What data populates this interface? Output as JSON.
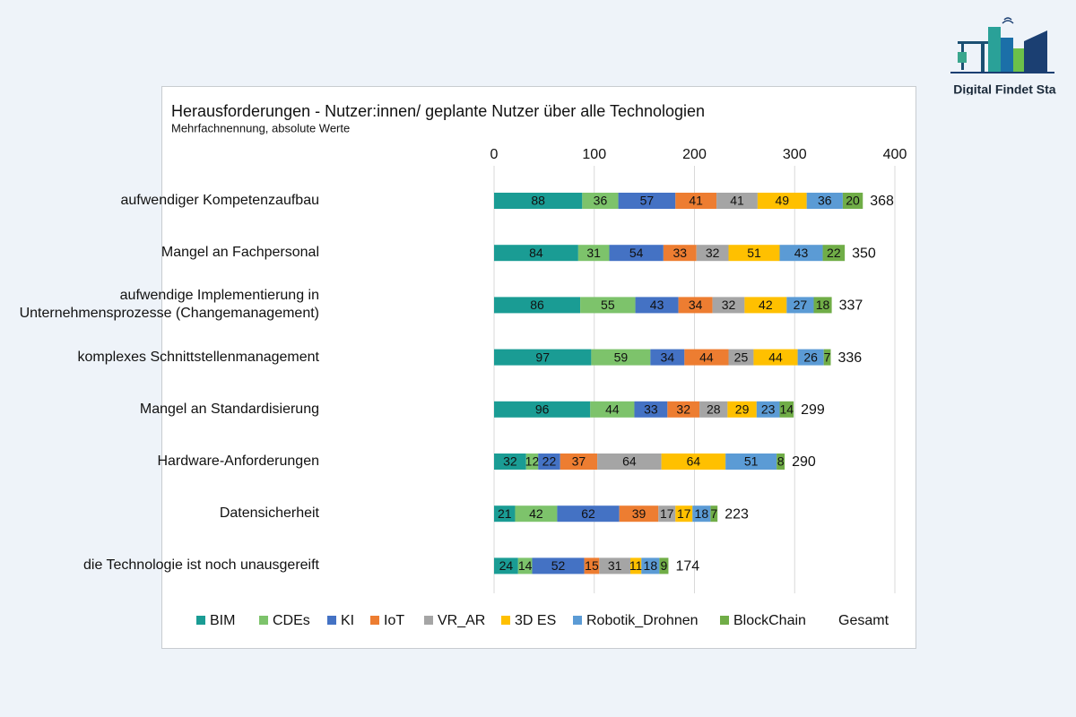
{
  "logo": {
    "text": "Digital Findet Stadt"
  },
  "chart_data": {
    "type": "bar",
    "orientation": "horizontal",
    "stacked": true,
    "title": "Herausforderungen - Nutzer:innen/ geplante Nutzer über alle Technologien",
    "subtitle": "Mehrfachnennung, absolute Werte",
    "categories": [
      "aufwendiger Kompetenzaufbau",
      "Mangel an Fachpersonal",
      "aufwendige Implementierung in\nUnternehmensprozesse (Changemanagement)",
      "komplexes Schnittstellenmanagement",
      "Mangel an Standardisierung",
      "Hardware-Anforderungen",
      "Datensicherheit",
      "die Technologie ist noch unausgereift"
    ],
    "series": [
      {
        "name": "BIM",
        "color": "#1a9c94",
        "values": [
          88,
          84,
          86,
          97,
          96,
          32,
          21,
          24
        ]
      },
      {
        "name": "CDEs",
        "color": "#7dc36b",
        "values": [
          36,
          31,
          55,
          59,
          44,
          12,
          42,
          14
        ]
      },
      {
        "name": "KI",
        "color": "#4472c4",
        "values": [
          57,
          54,
          43,
          34,
          33,
          22,
          62,
          52
        ]
      },
      {
        "name": "IoT",
        "color": "#ed7d31",
        "values": [
          41,
          33,
          34,
          44,
          32,
          37,
          39,
          15
        ]
      },
      {
        "name": "VR_AR",
        "color": "#a5a5a5",
        "values": [
          41,
          32,
          32,
          25,
          28,
          64,
          17,
          31
        ]
      },
      {
        "name": "3D ES",
        "color": "#ffc000",
        "values": [
          49,
          51,
          42,
          44,
          29,
          64,
          17,
          11
        ]
      },
      {
        "name": "Robotik_Drohnen",
        "color": "#5b9bd5",
        "values": [
          36,
          43,
          27,
          26,
          23,
          51,
          18,
          18
        ]
      },
      {
        "name": "BlockChain",
        "color": "#70ad47",
        "values": [
          20,
          22,
          18,
          7,
          14,
          8,
          7,
          9
        ]
      }
    ],
    "totals": {
      "name": "Gesamt",
      "values": [
        368,
        350,
        337,
        336,
        299,
        290,
        223,
        174
      ]
    },
    "xlim": [
      0,
      400
    ],
    "xticks": [
      0,
      100,
      200,
      300,
      400
    ],
    "grid": true
  }
}
